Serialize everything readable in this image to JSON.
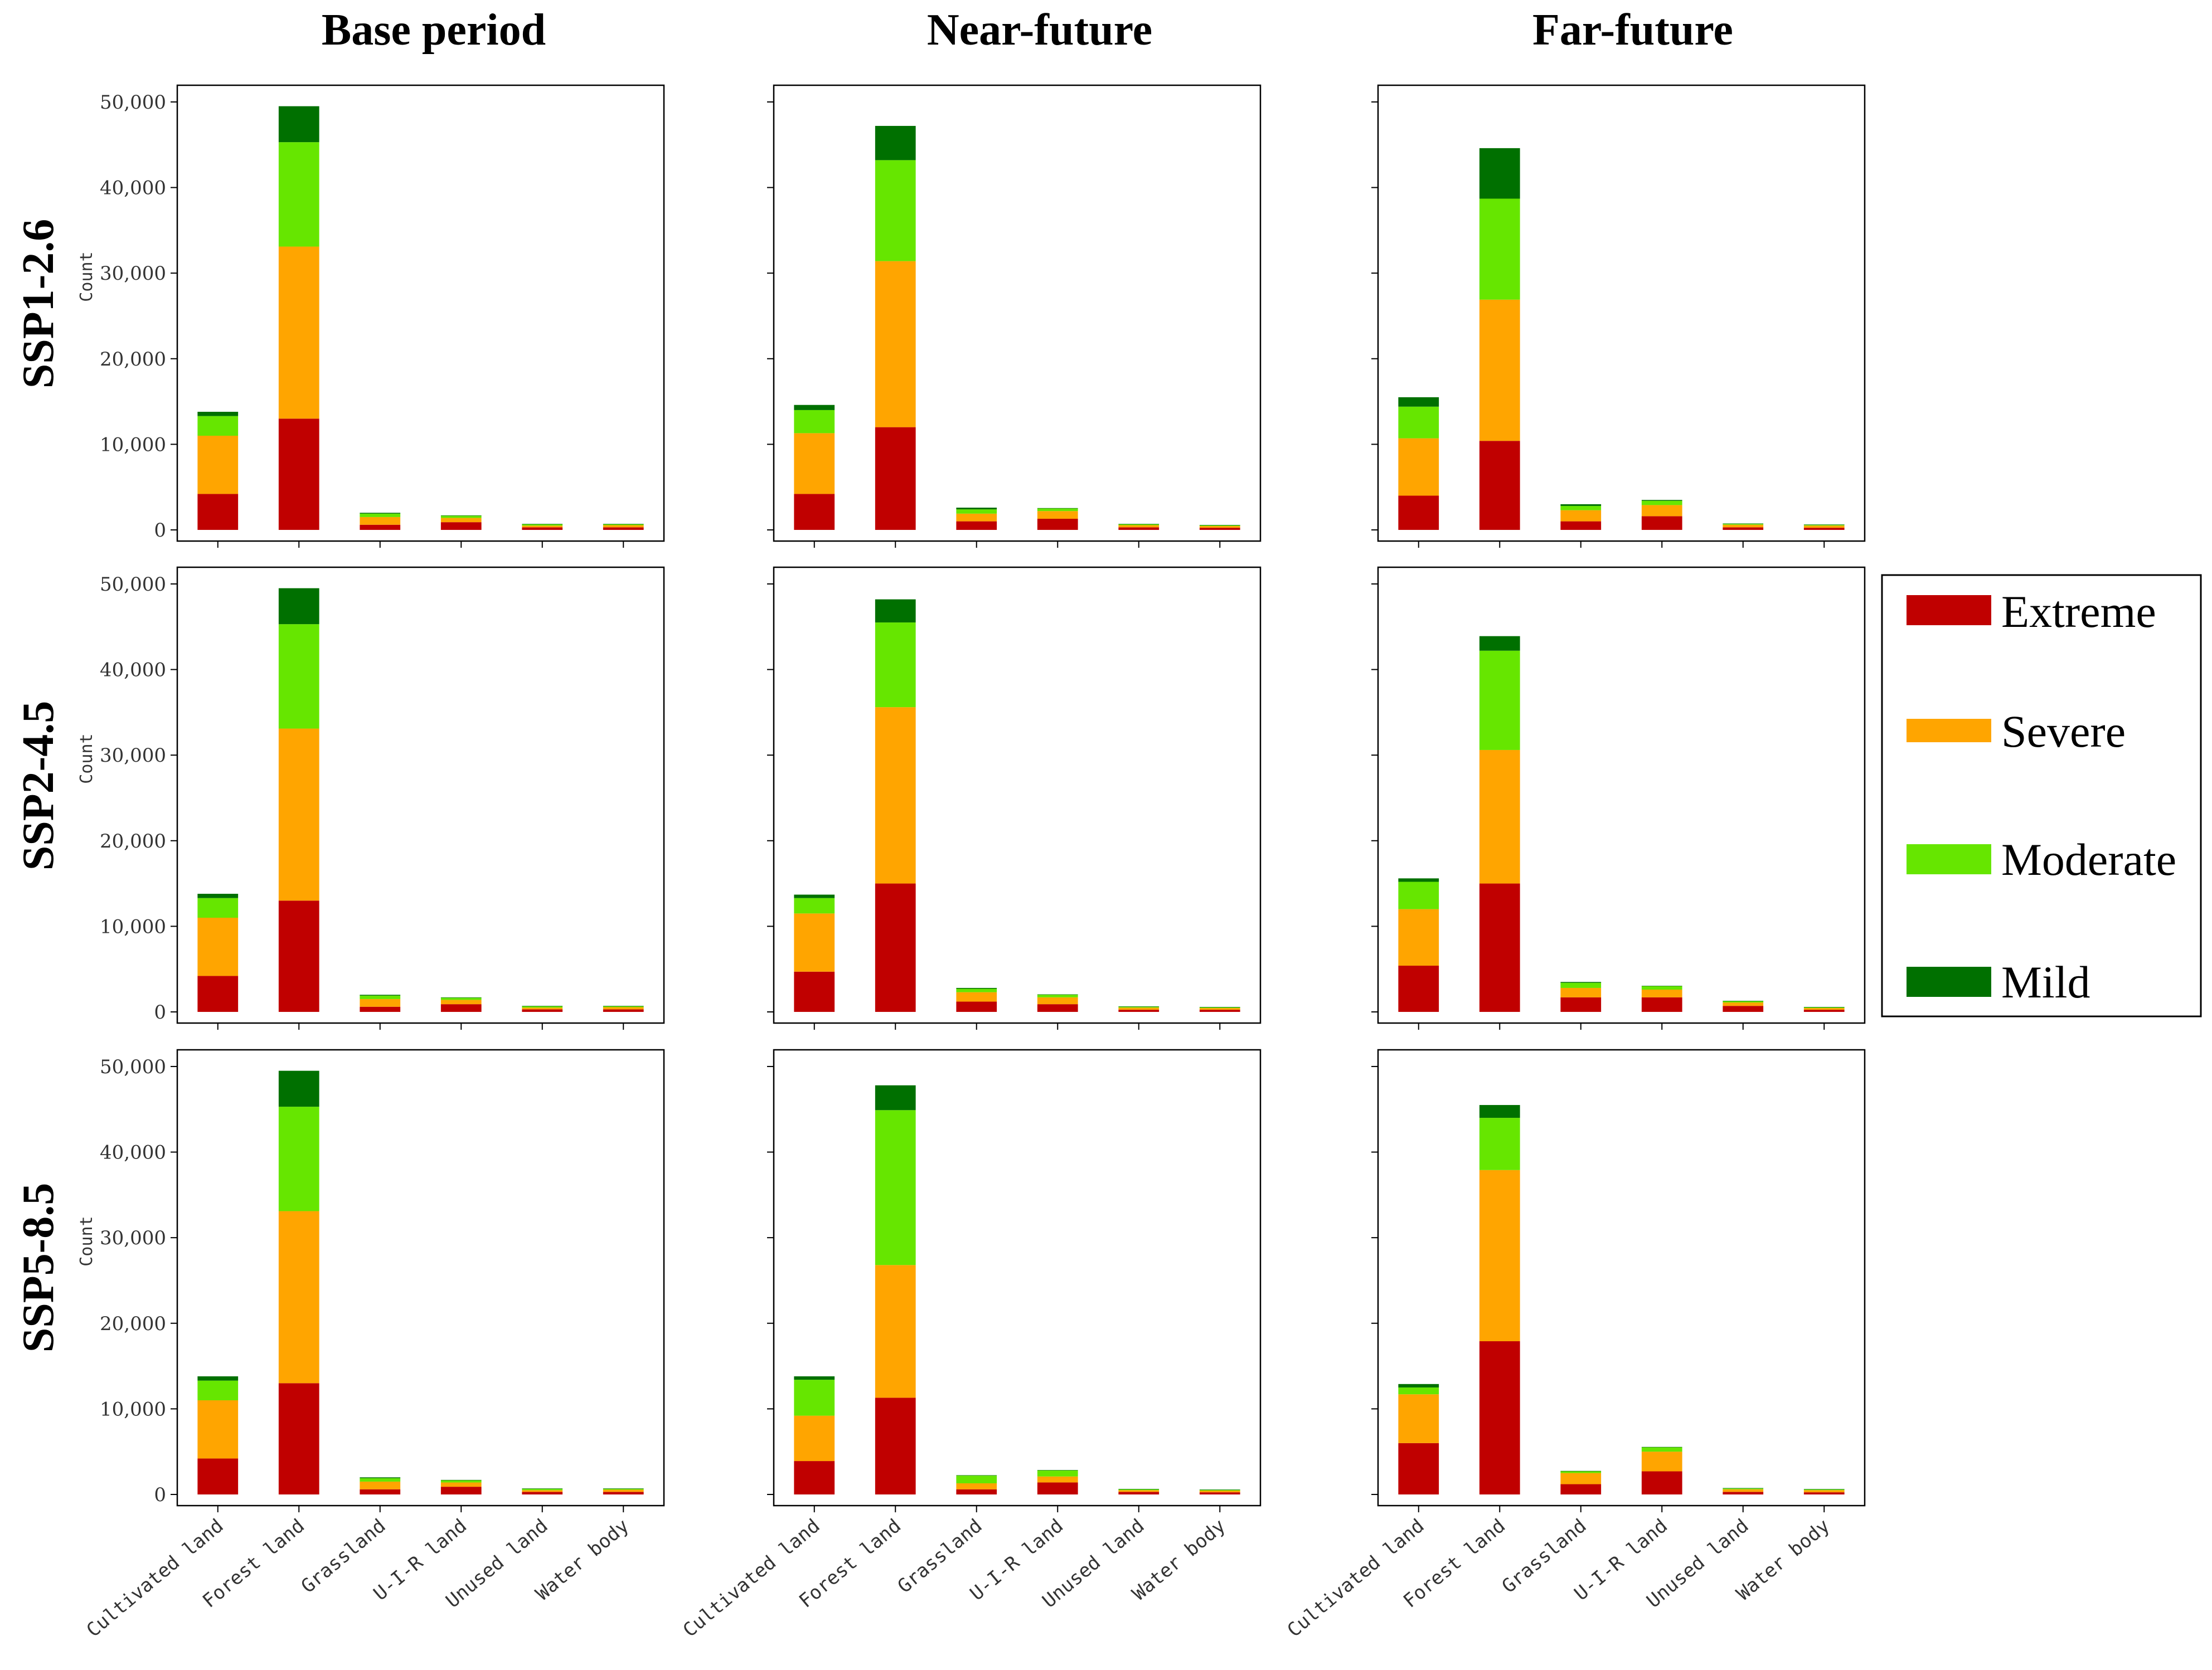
{
  "column_titles": [
    "Base period",
    "Near-future",
    "Far-future"
  ],
  "row_titles": [
    "SSP1-2.6",
    "SSP2-4.5",
    "SSP5-8.5"
  ],
  "legend": [
    {
      "label": "Extreme",
      "color": "#c00000"
    },
    {
      "label": "Severe",
      "color": "#ffa500"
    },
    {
      "label": "Moderate",
      "color": "#66e600"
    },
    {
      "label": "Mild",
      "color": "#007000"
    }
  ],
  "chart_data": {
    "type": "bar",
    "stacked": true,
    "ylabel": "Count",
    "ylim": [
      0,
      50000
    ],
    "yticks": [
      0,
      10000,
      20000,
      30000,
      40000,
      50000
    ],
    "ytick_labels": [
      "0",
      "10,000",
      "20,000",
      "30,000",
      "40,000",
      "50,000"
    ],
    "categories": [
      "Cultivated land",
      "Forest land",
      "Grassland",
      "U-I-R land",
      "Unused land",
      "Water body"
    ],
    "series_names": [
      "Extreme",
      "Severe",
      "Moderate",
      "Mild"
    ],
    "panels": [
      {
        "scenario": "SSP1-2.6",
        "period": "Base period",
        "values": {
          "Extreme": [
            4200,
            13000,
            600,
            900,
            300,
            300
          ],
          "Severe": [
            6800,
            20100,
            900,
            500,
            200,
            250
          ],
          "Moderate": [
            2300,
            12200,
            400,
            250,
            150,
            100
          ],
          "Mild": [
            500,
            4200,
            100,
            50,
            50,
            50
          ]
        }
      },
      {
        "scenario": "SSP1-2.6",
        "period": "Near-future",
        "values": {
          "Extreme": [
            4200,
            12000,
            1000,
            1300,
            300,
            250
          ],
          "Severe": [
            7100,
            19400,
            900,
            900,
            250,
            200
          ],
          "Moderate": [
            2700,
            11800,
            500,
            300,
            100,
            80
          ],
          "Mild": [
            600,
            4000,
            200,
            50,
            50,
            50
          ]
        }
      },
      {
        "scenario": "SSP1-2.6",
        "period": "Far-future",
        "values": {
          "Extreme": [
            4000,
            10400,
            1000,
            1600,
            300,
            250
          ],
          "Severe": [
            6700,
            16500,
            1300,
            1300,
            300,
            250
          ],
          "Moderate": [
            3700,
            11800,
            500,
            500,
            100,
            80
          ],
          "Mild": [
            1100,
            5900,
            200,
            100,
            50,
            50
          ]
        }
      },
      {
        "scenario": "SSP2-4.5",
        "period": "Base period",
        "values": {
          "Extreme": [
            4200,
            13000,
            600,
            900,
            300,
            300
          ],
          "Severe": [
            6800,
            20100,
            900,
            500,
            200,
            250
          ],
          "Moderate": [
            2300,
            12200,
            400,
            250,
            150,
            100
          ],
          "Mild": [
            500,
            4200,
            100,
            50,
            50,
            50
          ]
        }
      },
      {
        "scenario": "SSP2-4.5",
        "period": "Near-future",
        "values": {
          "Extreme": [
            4700,
            15000,
            1200,
            900,
            250,
            250
          ],
          "Severe": [
            6800,
            20600,
            1100,
            800,
            250,
            200
          ],
          "Moderate": [
            1800,
            9900,
            400,
            300,
            100,
            80
          ],
          "Mild": [
            400,
            2700,
            100,
            50,
            50,
            50
          ]
        }
      },
      {
        "scenario": "SSP2-4.5",
        "period": "Far-future",
        "values": {
          "Extreme": [
            5400,
            15000,
            1700,
            1700,
            700,
            250
          ],
          "Severe": [
            6600,
            15600,
            1100,
            900,
            400,
            200
          ],
          "Moderate": [
            3200,
            11600,
            600,
            400,
            150,
            80
          ],
          "Mild": [
            400,
            1700,
            100,
            50,
            50,
            50
          ]
        }
      },
      {
        "scenario": "SSP5-8.5",
        "period": "Base period",
        "values": {
          "Extreme": [
            4200,
            13000,
            600,
            900,
            300,
            300
          ],
          "Severe": [
            6800,
            20100,
            900,
            500,
            200,
            250
          ],
          "Moderate": [
            2300,
            12200,
            400,
            250,
            150,
            100
          ],
          "Mild": [
            500,
            4200,
            100,
            50,
            50,
            50
          ]
        }
      },
      {
        "scenario": "SSP5-8.5",
        "period": "Near-future",
        "values": {
          "Extreme": [
            3900,
            11300,
            600,
            1400,
            300,
            250
          ],
          "Severe": [
            5300,
            15500,
            700,
            700,
            200,
            200
          ],
          "Moderate": [
            4200,
            18100,
            900,
            700,
            100,
            80
          ],
          "Mild": [
            400,
            2900,
            50,
            50,
            50,
            50
          ]
        }
      },
      {
        "scenario": "SSP5-8.5",
        "period": "Far-future",
        "values": {
          "Extreme": [
            6000,
            17900,
            1200,
            2700,
            300,
            250
          ],
          "Severe": [
            5700,
            20000,
            1300,
            2300,
            300,
            250
          ],
          "Moderate": [
            800,
            6100,
            200,
            500,
            100,
            80
          ],
          "Mild": [
            400,
            1500,
            50,
            50,
            50,
            50
          ]
        }
      }
    ]
  }
}
